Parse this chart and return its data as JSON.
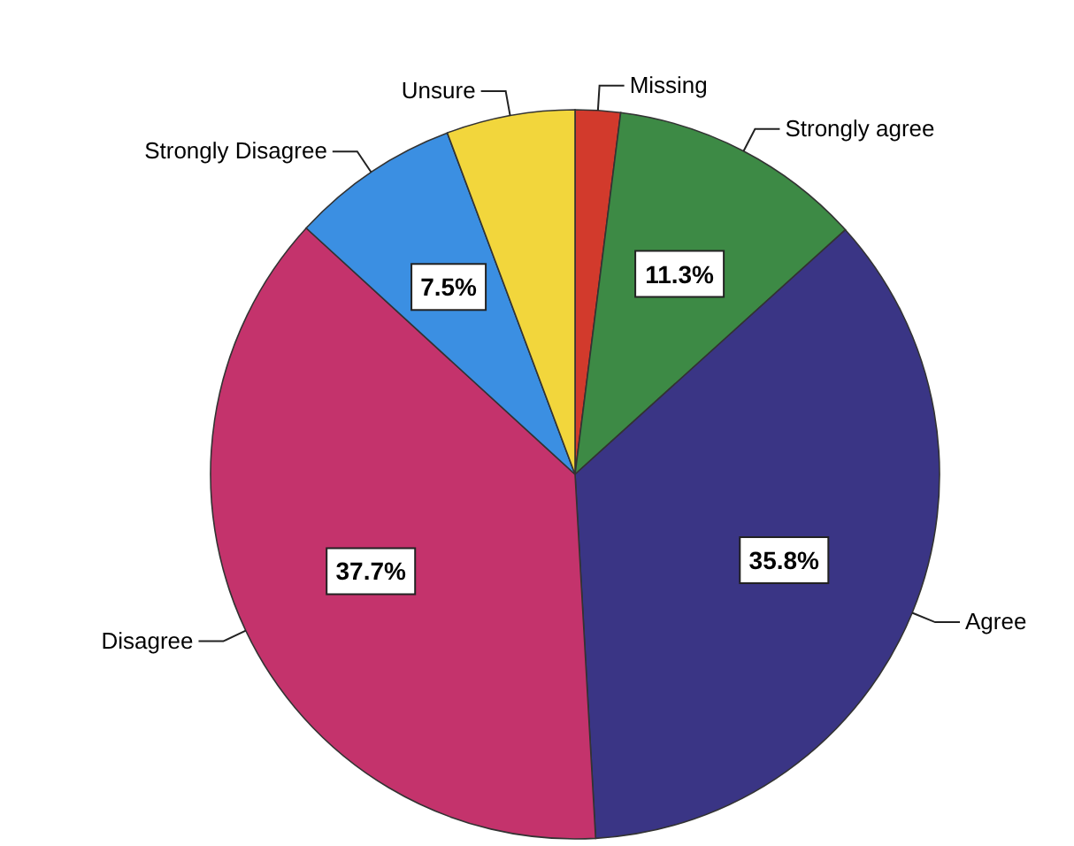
{
  "chart_data": {
    "type": "pie",
    "categories": [
      "Missing",
      "Strongly agree",
      "Agree",
      "Disagree",
      "Strongly Disagree",
      "Unsure"
    ],
    "values": [
      2.0,
      11.3,
      35.8,
      37.7,
      7.5,
      5.7
    ],
    "colors": [
      "#d23a2c",
      "#3d8a45",
      "#3a3585",
      "#c4336c",
      "#3b8fe2",
      "#f2d63c"
    ],
    "value_labels": [
      null,
      "11.3%",
      "35.8%",
      "37.7%",
      "7.5%",
      null
    ],
    "legend": false
  }
}
